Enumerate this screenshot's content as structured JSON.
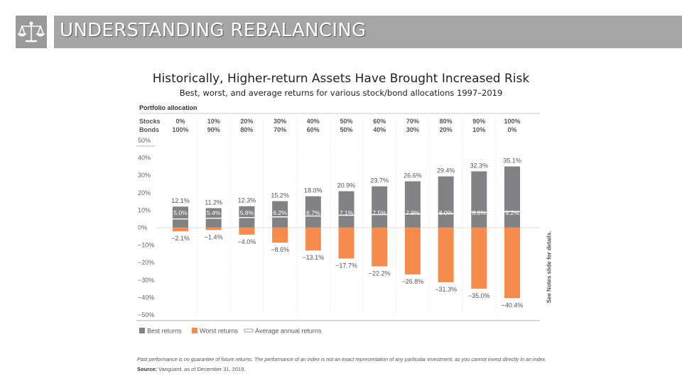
{
  "header": {
    "title": "UNDERSTANDING REBALANCING",
    "logo_icon": "scales-of-justice-icon"
  },
  "chart_data": {
    "type": "bar",
    "title": "Historically, Higher-return Assets Have Brought Increased Risk",
    "subtitle": "Best, worst, and average returns for various stock/bond allocations 1997–2019",
    "allocation_heading": "Portfolio allocation",
    "row_labels": {
      "stocks": "Stocks",
      "bonds": "Bonds"
    },
    "stocks": [
      "0%",
      "10%",
      "20%",
      "30%",
      "40%",
      "50%",
      "60%",
      "70%",
      "80%",
      "90%",
      "100%"
    ],
    "bonds": [
      "100%",
      "90%",
      "80%",
      "70%",
      "60%",
      "50%",
      "40%",
      "30%",
      "20%",
      "10%",
      "0%"
    ],
    "series": [
      {
        "name": "Best returns",
        "color": "#808285",
        "values": [
          12.1,
          11.2,
          12.3,
          15.2,
          18.0,
          20.9,
          23.7,
          26.6,
          29.4,
          32.3,
          35.1
        ]
      },
      {
        "name": "Worst returns",
        "color": "#f58b4c",
        "values": [
          -2.1,
          -1.4,
          -4.0,
          -8.6,
          -13.1,
          -17.7,
          -22.2,
          -26.8,
          -31.3,
          -35.0,
          -40.4
        ]
      },
      {
        "name": "Average annual returns",
        "color": "#ffffff",
        "values": [
          5.0,
          5.4,
          5.8,
          6.2,
          6.7,
          7.1,
          7.5,
          7.9,
          8.0,
          8.8,
          9.2
        ]
      }
    ],
    "best_labels": [
      "12.1%",
      "11.2%",
      "12.3%",
      "15.2%",
      "18.0%",
      "20.9%",
      "23.7%",
      "26.6%",
      "29.4%",
      "32.3%",
      "35.1%"
    ],
    "worst_labels": [
      "−2.1%",
      "−1.4%",
      "−4.0%",
      "−8.6%",
      "−13.1%",
      "−17.7%",
      "−22.2%",
      "−26.8%",
      "−31.3%",
      "−35.0%",
      "−40.4%"
    ],
    "avg_labels": [
      "5.0%",
      "5.4%",
      "5.8%",
      "6.2%",
      "6.7%",
      "7.1%",
      "7.5%",
      "7.9%",
      "8.0%",
      "8.8%",
      "9.2%"
    ],
    "yticks": [
      50,
      40,
      30,
      20,
      10,
      0,
      -10,
      -20,
      -30,
      -40,
      -50
    ],
    "ytick_labels": [
      "50%",
      "40%",
      "30%",
      "20%",
      "10%",
      "0%",
      "−10%",
      "−20%",
      "−30%",
      "−40%",
      "−50%"
    ],
    "ylim": [
      -50,
      50
    ],
    "legend_position": "bottom-left",
    "grid": false
  },
  "side_note": "See Notes slide for details.",
  "footnote": "Past performance is no guarantee of future returns. The performance of an index is not an exact representation of any particular investment, as you cannot invest directly in an index.",
  "source": {
    "label": "Source:",
    "text": "Vanguard, as of December 31, 2019."
  }
}
